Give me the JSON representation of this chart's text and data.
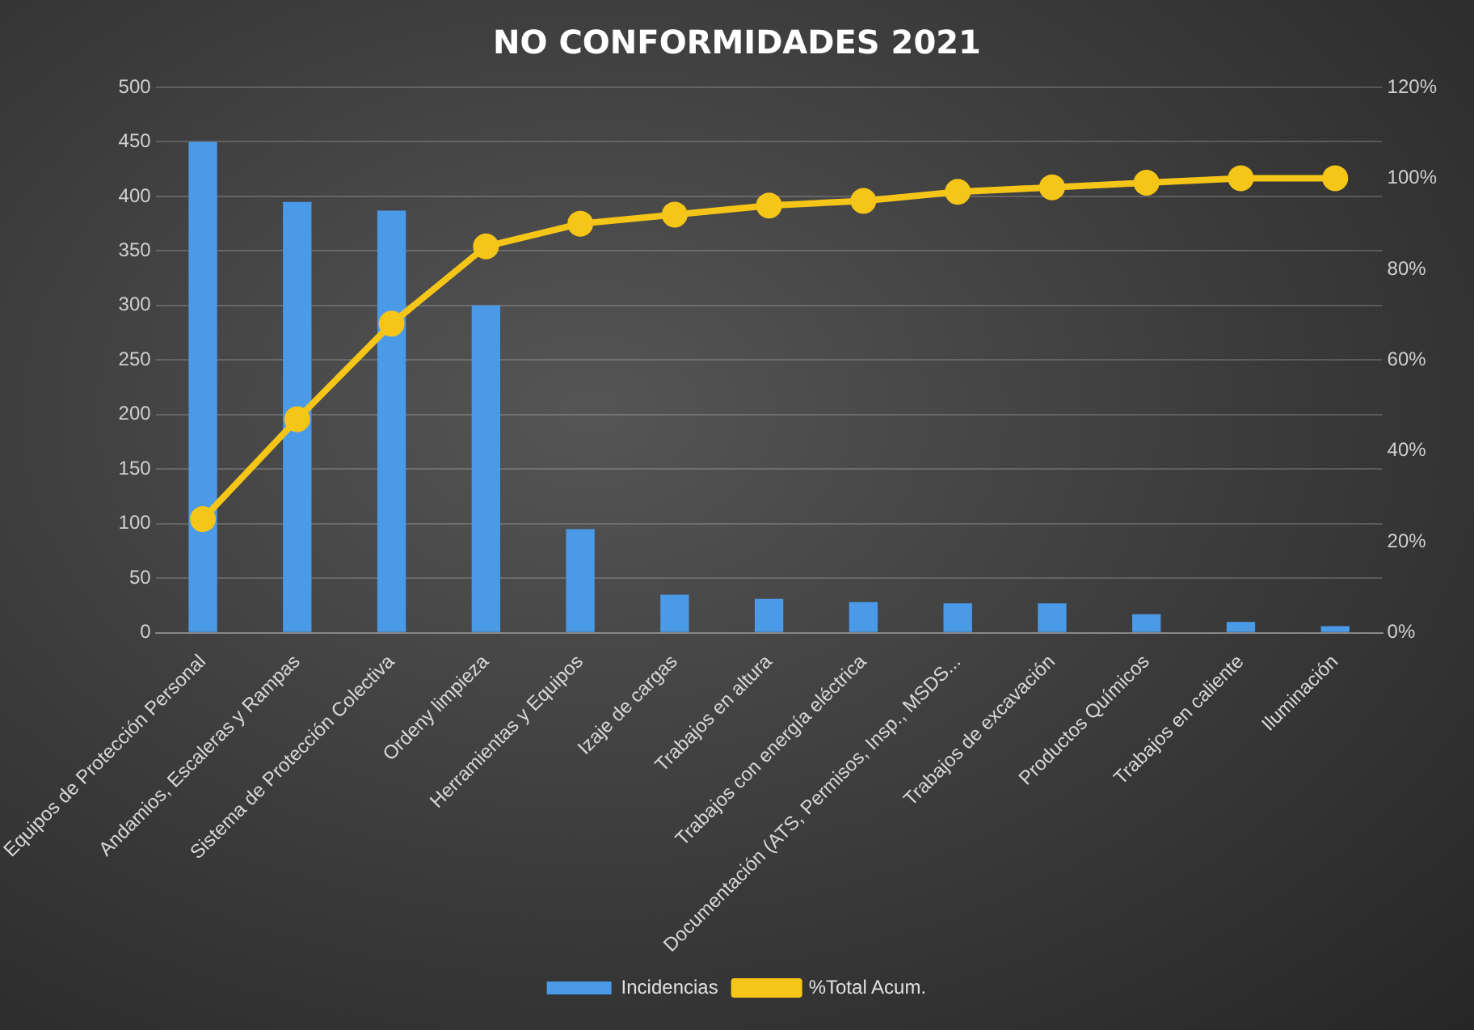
{
  "chart_data": {
    "type": "bar",
    "title": "NO CONFORMIDADES 2021",
    "categories": [
      "Equipos de Protección Personal",
      "Andamios, Escaleras y Rampas",
      "Sistema de Protección Colectiva",
      "Ordeny limpieza",
      "Herramientas y Equipos",
      "Izaje de cargas",
      "Trabajos en altura",
      "Trabajos con energía eléctrica",
      "Documentación (ATS, Permisos, Insp., MSDS...",
      "Trabajos de excavación",
      "Productos Químicos",
      "Trabajos en caliente",
      "Iluminación"
    ],
    "series": [
      {
        "name": "Incidencias",
        "color": "#4a9ae8",
        "values": [
          450,
          395,
          387,
          300,
          95,
          35,
          31,
          28,
          27,
          27,
          17,
          10,
          6
        ]
      },
      {
        "name": "%Total Acum.",
        "type": "line",
        "axis": "y2",
        "color": "#f5c518",
        "marker": "circle",
        "values": [
          25,
          47,
          68,
          85,
          90,
          92,
          94,
          95,
          97,
          98,
          99,
          100,
          100
        ]
      }
    ],
    "ylim": [
      0,
      500
    ],
    "yticks": [
      0,
      50,
      100,
      150,
      200,
      250,
      300,
      350,
      400,
      450,
      500
    ],
    "y2lim": [
      0,
      120
    ],
    "y2ticks": [
      {
        "value": 0,
        "label": "0%"
      },
      {
        "value": 20,
        "label": "20%"
      },
      {
        "value": 40,
        "label": "40%"
      },
      {
        "value": 60,
        "label": "60%"
      },
      {
        "value": 80,
        "label": "80%"
      },
      {
        "value": 100,
        "label": "100%"
      },
      {
        "value": 120,
        "label": "120%"
      }
    ],
    "grid": "y",
    "legend": "bottom"
  }
}
